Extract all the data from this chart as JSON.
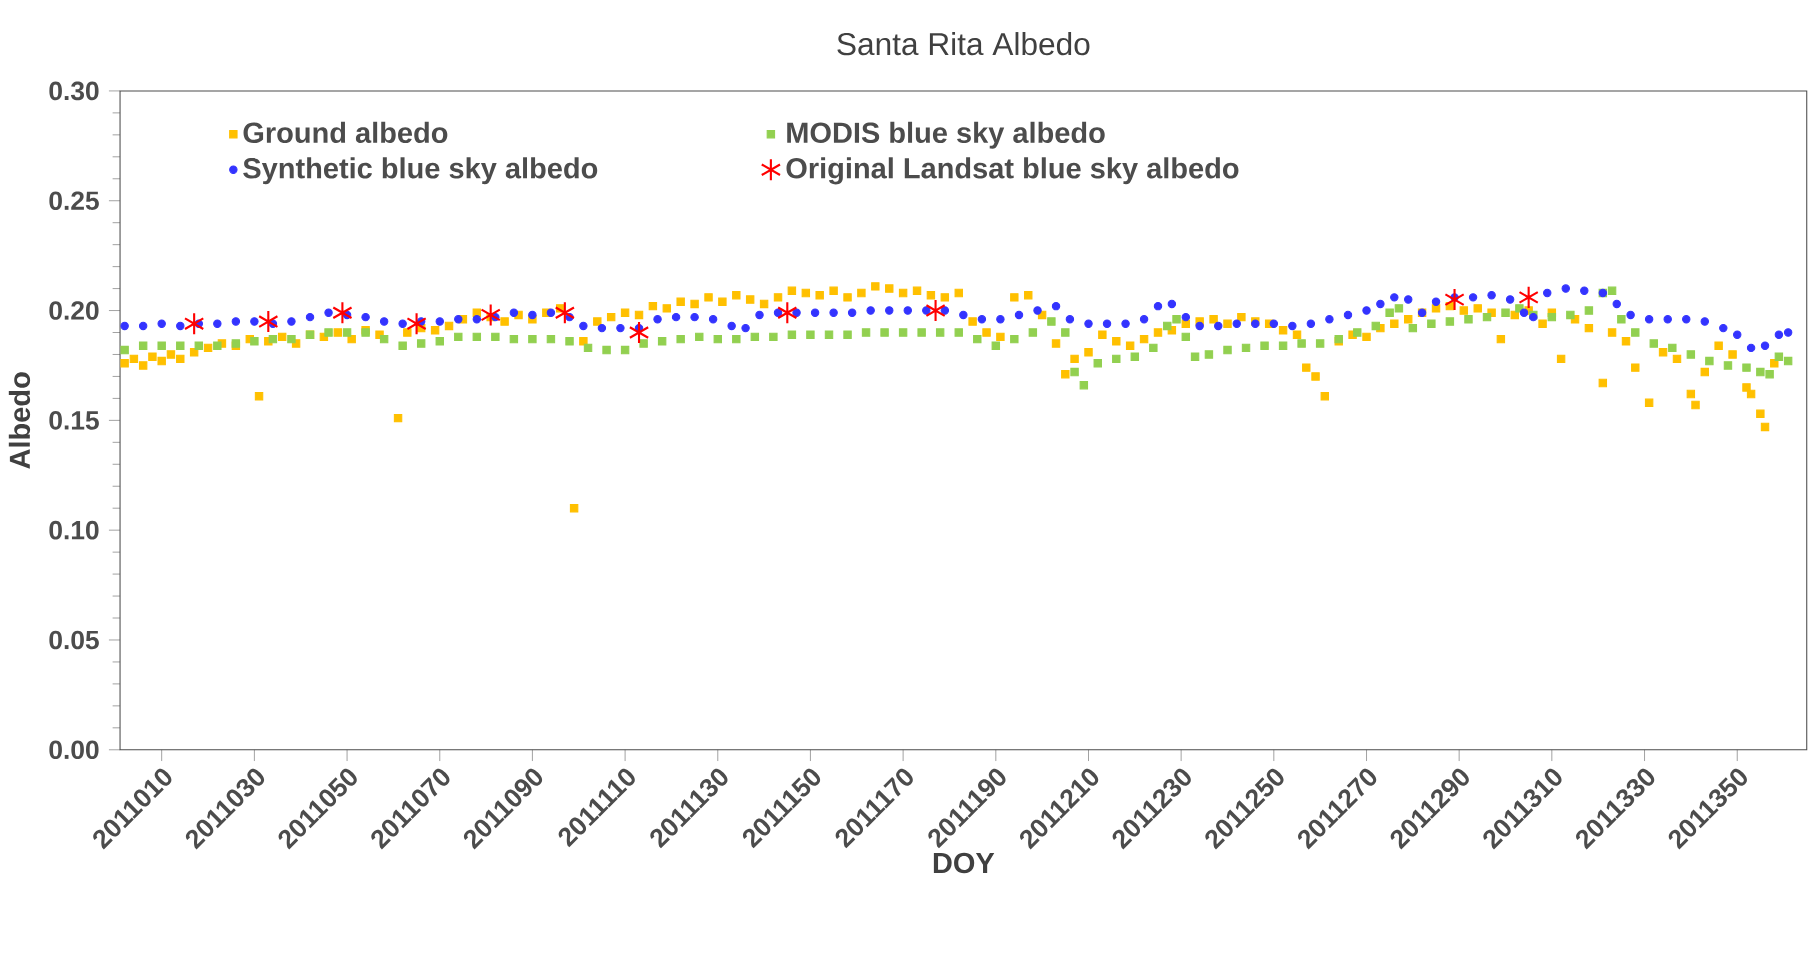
{
  "chart_data": {
    "type": "scatter",
    "title": "Santa Rita Albedo",
    "xlabel": "DOY",
    "ylabel": "Albedo",
    "xlim": [
      2011001,
      2011365
    ],
    "ylim": [
      0,
      0.3
    ],
    "xticks": [
      2011010,
      2011030,
      2011050,
      2011070,
      2011090,
      2011110,
      2011130,
      2011150,
      2011170,
      2011190,
      2011210,
      2011230,
      2011250,
      2011270,
      2011290,
      2011310,
      2011330,
      2011350
    ],
    "yticks": [
      {
        "value": 0,
        "label": "0.00"
      },
      {
        "value": 0.05,
        "label": "0.05"
      },
      {
        "value": 0.1,
        "label": "0.10"
      },
      {
        "value": 0.15,
        "label": "0.15"
      },
      {
        "value": 0.2,
        "label": "0.20"
      },
      {
        "value": 0.25,
        "label": "0.25"
      },
      {
        "value": 0.3,
        "label": "0.30"
      }
    ],
    "legend": "top",
    "series": [
      {
        "name": "Ground albedo",
        "color": "#ffc000",
        "marker": "square",
        "x": [
          2011002,
          2011004,
          2011006,
          2011008,
          2011010,
          2011012,
          2011014,
          2011017,
          2011020,
          2011023,
          2011026,
          2011029,
          2011031,
          2011033,
          2011036,
          2011039,
          2011042,
          2011045,
          2011048,
          2011051,
          2011054,
          2011057,
          2011061,
          2011063,
          2011066,
          2011069,
          2011072,
          2011075,
          2011078,
          2011081,
          2011084,
          2011087,
          2011090,
          2011093,
          2011096,
          2011099,
          2011101,
          2011104,
          2011107,
          2011110,
          2011113,
          2011116,
          2011119,
          2011122,
          2011125,
          2011128,
          2011131,
          2011134,
          2011137,
          2011140,
          2011143,
          2011146,
          2011149,
          2011152,
          2011155,
          2011158,
          2011161,
          2011164,
          2011167,
          2011170,
          2011173,
          2011176,
          2011179,
          2011182,
          2011185,
          2011188,
          2011191,
          2011194,
          2011197,
          2011200,
          2011203,
          2011205,
          2011207,
          2011210,
          2011213,
          2011216,
          2011219,
          2011222,
          2011225,
          2011228,
          2011231,
          2011234,
          2011237,
          2011240,
          2011243,
          2011246,
          2011249,
          2011252,
          2011255,
          2011257,
          2011259,
          2011261,
          2011264,
          2011267,
          2011270,
          2011273,
          2011276,
          2011279,
          2011282,
          2011285,
          2011288,
          2011291,
          2011294,
          2011297,
          2011299,
          2011302,
          2011305,
          2011308,
          2011310,
          2011312,
          2011315,
          2011318,
          2011321,
          2011323,
          2011326,
          2011328,
          2011331,
          2011334,
          2011337,
          2011340,
          2011341,
          2011343,
          2011346,
          2011349,
          2011352,
          2011353,
          2011355,
          2011356,
          2011358
        ],
        "values": [
          0.176,
          0.178,
          0.175,
          0.179,
          0.177,
          0.18,
          0.178,
          0.181,
          0.183,
          0.185,
          0.184,
          0.187,
          0.161,
          0.186,
          0.188,
          0.185,
          0.189,
          0.188,
          0.19,
          0.187,
          0.191,
          0.189,
          0.151,
          0.19,
          0.192,
          0.191,
          0.193,
          0.196,
          0.199,
          0.197,
          0.195,
          0.198,
          0.196,
          0.199,
          0.201,
          0.11,
          0.186,
          0.195,
          0.197,
          0.199,
          0.198,
          0.202,
          0.201,
          0.204,
          0.203,
          0.206,
          0.204,
          0.207,
          0.205,
          0.203,
          0.206,
          0.209,
          0.208,
          0.207,
          0.209,
          0.206,
          0.208,
          0.211,
          0.21,
          0.208,
          0.209,
          0.207,
          0.206,
          0.208,
          0.195,
          0.19,
          0.188,
          0.206,
          0.207,
          0.198,
          0.185,
          0.171,
          0.178,
          0.181,
          0.189,
          0.186,
          0.184,
          0.187,
          0.19,
          0.191,
          0.194,
          0.195,
          0.196,
          0.194,
          0.197,
          0.195,
          0.194,
          0.191,
          0.189,
          0.174,
          0.17,
          0.161,
          0.186,
          0.189,
          0.188,
          0.192,
          0.194,
          0.196,
          0.199,
          0.201,
          0.202,
          0.2,
          0.201,
          0.199,
          0.187,
          0.198,
          0.2,
          0.194,
          0.199,
          0.178,
          0.196,
          0.192,
          0.167,
          0.19,
          0.186,
          0.174,
          0.158,
          0.181,
          0.178,
          0.162,
          0.157,
          0.172,
          0.184,
          0.18,
          0.165,
          0.162,
          0.153,
          0.147,
          0.176
        ]
      },
      {
        "name": "MODIS blue sky albedo",
        "color": "#92d050",
        "marker": "square",
        "x": [
          2011002,
          2011006,
          2011010,
          2011014,
          2011018,
          2011022,
          2011026,
          2011030,
          2011034,
          2011038,
          2011042,
          2011046,
          2011050,
          2011054,
          2011058,
          2011062,
          2011066,
          2011070,
          2011074,
          2011078,
          2011082,
          2011086,
          2011090,
          2011094,
          2011098,
          2011102,
          2011106,
          2011110,
          2011114,
          2011118,
          2011122,
          2011126,
          2011130,
          2011134,
          2011138,
          2011142,
          2011146,
          2011150,
          2011154,
          2011158,
          2011162,
          2011166,
          2011170,
          2011174,
          2011178,
          2011182,
          2011186,
          2011190,
          2011194,
          2011198,
          2011202,
          2011205,
          2011207,
          2011209,
          2011212,
          2011216,
          2011220,
          2011224,
          2011227,
          2011229,
          2011231,
          2011233,
          2011236,
          2011240,
          2011244,
          2011248,
          2011252,
          2011256,
          2011260,
          2011264,
          2011268,
          2011272,
          2011275,
          2011277,
          2011280,
          2011284,
          2011288,
          2011292,
          2011296,
          2011300,
          2011303,
          2011306,
          2011310,
          2011314,
          2011318,
          2011321,
          2011323,
          2011325,
          2011328,
          2011332,
          2011336,
          2011340,
          2011344,
          2011348,
          2011352,
          2011355,
          2011357,
          2011359,
          2011361
        ],
        "values": [
          0.182,
          0.184,
          0.184,
          0.184,
          0.184,
          0.184,
          0.185,
          0.186,
          0.187,
          0.187,
          0.189,
          0.19,
          0.19,
          0.19,
          0.187,
          0.184,
          0.185,
          0.186,
          0.188,
          0.188,
          0.188,
          0.187,
          0.187,
          0.187,
          0.186,
          0.183,
          0.182,
          0.182,
          0.185,
          0.186,
          0.187,
          0.188,
          0.187,
          0.187,
          0.188,
          0.188,
          0.189,
          0.189,
          0.189,
          0.189,
          0.19,
          0.19,
          0.19,
          0.19,
          0.19,
          0.19,
          0.187,
          0.184,
          0.187,
          0.19,
          0.195,
          0.19,
          0.172,
          0.166,
          0.176,
          0.178,
          0.179,
          0.183,
          0.193,
          0.196,
          0.188,
          0.179,
          0.18,
          0.182,
          0.183,
          0.184,
          0.184,
          0.185,
          0.185,
          0.187,
          0.19,
          0.193,
          0.199,
          0.201,
          0.192,
          0.194,
          0.195,
          0.196,
          0.197,
          0.199,
          0.201,
          0.198,
          0.197,
          0.198,
          0.2,
          0.208,
          0.209,
          0.196,
          0.19,
          0.185,
          0.183,
          0.18,
          0.177,
          0.175,
          0.174,
          0.172,
          0.171,
          0.179,
          0.177
        ]
      },
      {
        "name": "Synthetic blue sky albedo",
        "color": "#3333ff",
        "marker": "circle",
        "x": [
          2011002,
          2011006,
          2011010,
          2011014,
          2011018,
          2011022,
          2011026,
          2011030,
          2011034,
          2011038,
          2011042,
          2011046,
          2011050,
          2011054,
          2011058,
          2011062,
          2011066,
          2011070,
          2011074,
          2011078,
          2011082,
          2011086,
          2011090,
          2011094,
          2011098,
          2011101,
          2011105,
          2011109,
          2011113,
          2011117,
          2011121,
          2011125,
          2011129,
          2011133,
          2011136,
          2011139,
          2011143,
          2011147,
          2011151,
          2011155,
          2011159,
          2011163,
          2011167,
          2011171,
          2011175,
          2011179,
          2011183,
          2011187,
          2011191,
          2011195,
          2011199,
          2011203,
          2011206,
          2011210,
          2011214,
          2011218,
          2011222,
          2011225,
          2011228,
          2011231,
          2011234,
          2011238,
          2011242,
          2011246,
          2011250,
          2011254,
          2011258,
          2011262,
          2011266,
          2011270,
          2011273,
          2011276,
          2011279,
          2011282,
          2011285,
          2011289,
          2011293,
          2011297,
          2011301,
          2011304,
          2011306,
          2011309,
          2011313,
          2011317,
          2011321,
          2011324,
          2011327,
          2011331,
          2011335,
          2011339,
          2011343,
          2011347,
          2011350,
          2011353,
          2011356,
          2011359,
          2011361
        ],
        "values": [
          0.193,
          0.193,
          0.194,
          0.193,
          0.194,
          0.194,
          0.195,
          0.195,
          0.194,
          0.195,
          0.197,
          0.199,
          0.198,
          0.197,
          0.195,
          0.194,
          0.195,
          0.195,
          0.196,
          0.196,
          0.197,
          0.199,
          0.198,
          0.199,
          0.197,
          0.193,
          0.192,
          0.192,
          0.192,
          0.196,
          0.197,
          0.197,
          0.196,
          0.193,
          0.192,
          0.198,
          0.199,
          0.199,
          0.199,
          0.199,
          0.199,
          0.2,
          0.2,
          0.2,
          0.2,
          0.2,
          0.198,
          0.196,
          0.196,
          0.198,
          0.2,
          0.202,
          0.196,
          0.194,
          0.194,
          0.194,
          0.196,
          0.202,
          0.203,
          0.197,
          0.193,
          0.193,
          0.194,
          0.194,
          0.194,
          0.193,
          0.194,
          0.196,
          0.198,
          0.2,
          0.203,
          0.206,
          0.205,
          0.199,
          0.204,
          0.206,
          0.206,
          0.207,
          0.205,
          0.199,
          0.197,
          0.208,
          0.21,
          0.209,
          0.208,
          0.203,
          0.198,
          0.196,
          0.196,
          0.196,
          0.195,
          0.192,
          0.189,
          0.183,
          0.184,
          0.189,
          0.19
        ]
      },
      {
        "name": "Original Landsat blue sky albedo",
        "color": "#ff0000",
        "marker": "cross",
        "x": [
          2011017,
          2011033,
          2011049,
          2011065,
          2011081,
          2011097,
          2011113,
          2011145,
          2011177,
          2011289,
          2011305
        ],
        "values": [
          0.194,
          0.195,
          0.199,
          0.194,
          0.198,
          0.199,
          0.19,
          0.199,
          0.2,
          0.205,
          0.206
        ]
      }
    ]
  }
}
